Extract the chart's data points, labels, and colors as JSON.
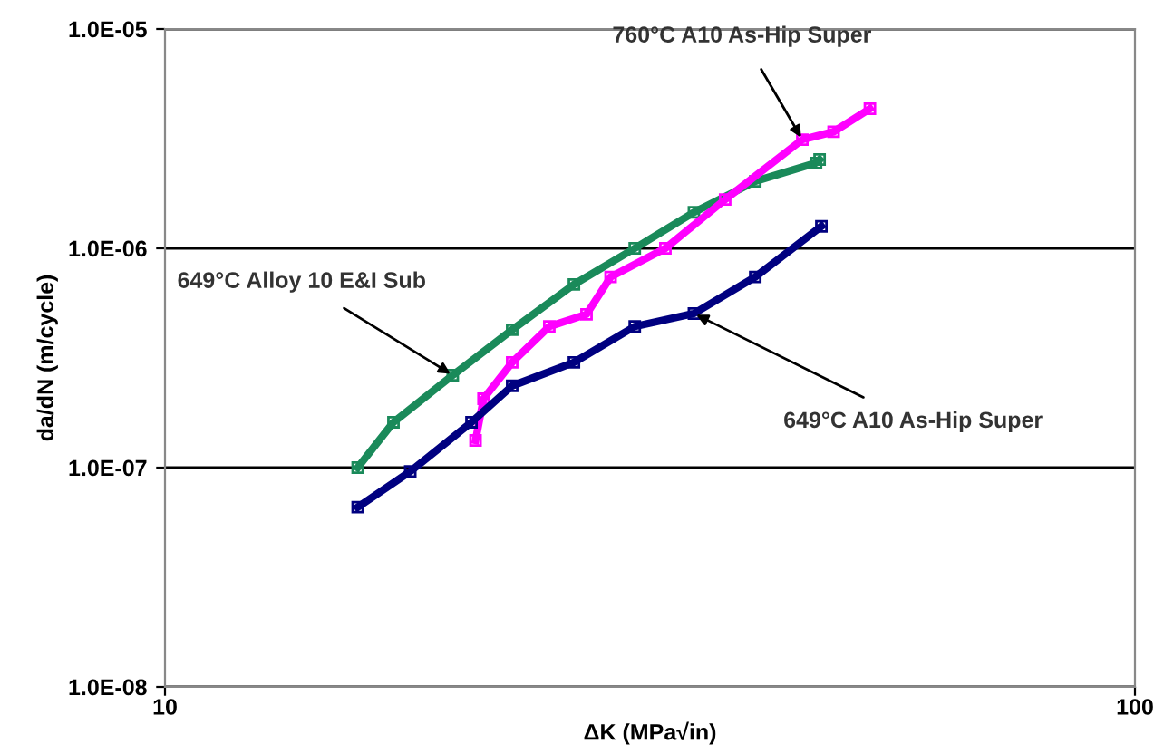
{
  "chart_data": {
    "type": "line",
    "xlabel": "ΔK (MPa√in)",
    "ylabel": "da/dN (m/cycle)",
    "log": "xy",
    "xlim": [
      10,
      100
    ],
    "xticks": [
      10,
      100
    ],
    "ylim": [
      1e-08,
      1e-05
    ],
    "yticks": [
      {
        "value": 1e-08,
        "label": "1.0E-08"
      },
      {
        "value": 1e-07,
        "label": "1.0E-07"
      },
      {
        "value": 1e-06,
        "label": "1.0E-06"
      },
      {
        "value": 1e-05,
        "label": "1.0E-05"
      }
    ],
    "grid": "y",
    "marker": "square",
    "line_style": "solid",
    "series": [
      {
        "color": "#1a8a5a",
        "x": [
          15.8,
          17.2,
          19.8,
          22.8,
          26.4,
          30.5,
          35.1,
          40.6,
          46.9,
          47.3
        ],
        "values": [
          1e-07,
          1.61e-07,
          2.64e-07,
          4.25e-07,
          6.84e-07,
          1e-06,
          1.46e-06,
          2.02e-06,
          2.45e-06,
          2.54e-06
        ]
      },
      {
        "color": "#ff00ff",
        "x": [
          20.9,
          21.3,
          22.8,
          24.9,
          27.2,
          28.8,
          32.8,
          37.8,
          45.4,
          48.9,
          53.3
        ],
        "values": [
          1.33e-07,
          2.06e-07,
          3.02e-07,
          4.4e-07,
          5e-07,
          7.4e-07,
          1e-06,
          1.67e-06,
          3.13e-06,
          3.4e-06,
          4.33e-06
        ]
      },
      {
        "color": "#000080",
        "x": [
          15.8,
          17.9,
          20.7,
          22.8,
          26.4,
          30.5,
          35.1,
          40.6,
          47.5
        ],
        "values": [
          6.6e-08,
          9.6e-08,
          1.61e-07,
          2.36e-07,
          3.02e-07,
          4.4e-07,
          5.04e-07,
          7.4e-07,
          1.26e-06
        ]
      }
    ],
    "annotations": [
      {
        "text": "760°C A10 As-Hip Super",
        "x": 45.4,
        "y": 3.13e-06
      },
      {
        "text": "649°C Alloy 10 E&I Sub",
        "x": 19.8,
        "y": 2.64e-07
      },
      {
        "text": "649°C A10 As-Hip Super",
        "x": 35.1,
        "y": 5.04e-07
      }
    ]
  }
}
